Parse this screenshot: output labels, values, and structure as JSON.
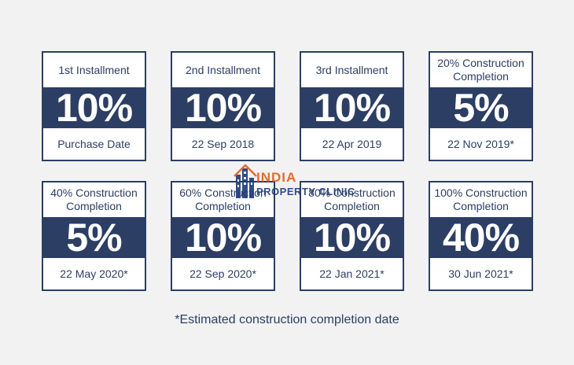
{
  "installments": [
    {
      "label": "1st Installment",
      "percent": "10%",
      "date": "Purchase Date"
    },
    {
      "label": "2nd Installment",
      "percent": "10%",
      "date": "22 Sep 2018"
    },
    {
      "label": "3rd Installment",
      "percent": "10%",
      "date": "22 Apr 2019"
    },
    {
      "label": "20% Construction\nCompletion",
      "percent": "5%",
      "date": "22 Nov 2019*"
    },
    {
      "label": "40% Construction\nCompletion",
      "percent": "5%",
      "date": "22 May 2020*"
    },
    {
      "label": "60% Construction\nCompletion",
      "percent": "10%",
      "date": "22 Sep 2020*"
    },
    {
      "label": "80% Construction\nCompletion",
      "percent": "10%",
      "date": "22 Jan 2021*"
    },
    {
      "label": "100% Construction\nCompletion",
      "percent": "40%",
      "date": "30 Jun 2021*"
    }
  ],
  "footnote": "*Estimated construction completion date",
  "watermark": {
    "line1": "INDIA",
    "line2": "PROPERTY CLINIC",
    "icon": "building-logo-icon"
  },
  "colors": {
    "navy": "#2c3e63",
    "background": "#f2f2f2",
    "watermark_orange": "#e85a1b",
    "watermark_blue": "#1d3a7a"
  }
}
